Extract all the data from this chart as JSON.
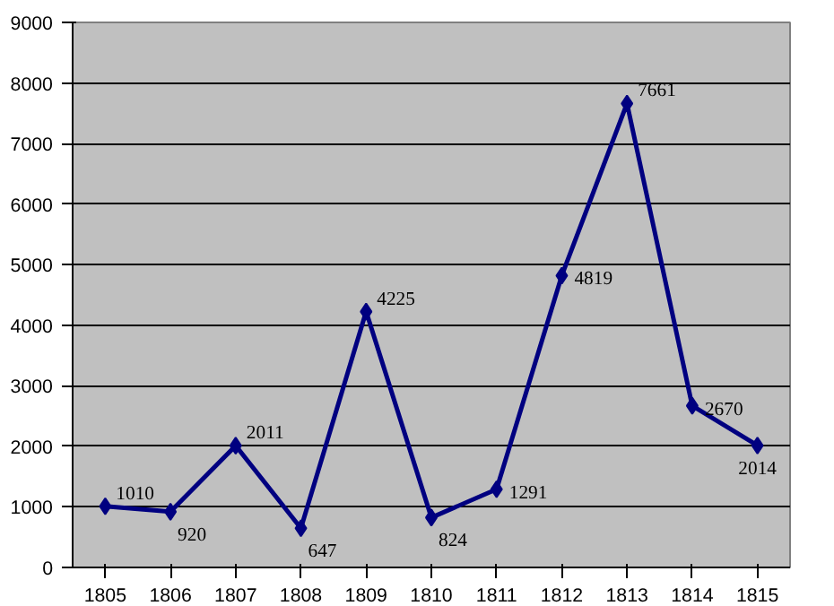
{
  "chart_data": {
    "type": "line",
    "categories": [
      "1805",
      "1806",
      "1807",
      "1808",
      "1809",
      "1810",
      "1811",
      "1812",
      "1813",
      "1814",
      "1815"
    ],
    "series": [
      {
        "color": "#000080",
        "values": [
          1010,
          920,
          2011,
          647,
          4225,
          824,
          1291,
          4819,
          7661,
          2670,
          2014
        ]
      }
    ],
    "ylim": [
      0,
      9000
    ],
    "yticks": [
      0,
      1000,
      2000,
      3000,
      4000,
      5000,
      6000,
      7000,
      8000,
      9000
    ],
    "grid": "y",
    "marker": "diamond",
    "line_style": "solid",
    "data_labels": true
  }
}
